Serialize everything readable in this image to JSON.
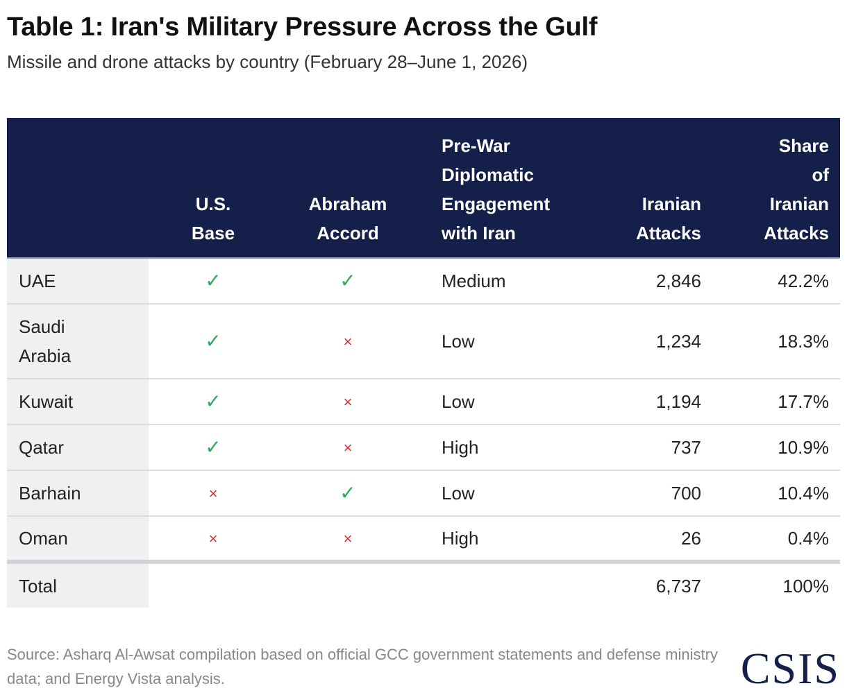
{
  "chart_data": {
    "type": "table",
    "title": "Table 1: Iran's Military Pressure Across the Gulf",
    "subtitle": "Missile and drone attacks by country (February 28–June 1, 2026)",
    "columns": [
      {
        "key": "country",
        "lines": [
          ""
        ]
      },
      {
        "key": "us_base",
        "lines": [
          "U.S.",
          "Base"
        ]
      },
      {
        "key": "abraham_accord",
        "lines": [
          "Abraham",
          "Accord"
        ]
      },
      {
        "key": "engagement",
        "lines": [
          "Pre-War",
          "Diplomatic",
          "Engagement",
          "with Iran"
        ]
      },
      {
        "key": "attacks",
        "lines": [
          "Iranian",
          "Attacks"
        ]
      },
      {
        "key": "share",
        "lines": [
          "Share",
          "of",
          "Iranian",
          "Attacks"
        ]
      }
    ],
    "rows": [
      {
        "country": [
          "UAE"
        ],
        "us_base": true,
        "abraham_accord": true,
        "engagement": "Medium",
        "attacks": "2,846",
        "share": "42.2%"
      },
      {
        "country": [
          "Saudi",
          "Arabia"
        ],
        "us_base": true,
        "abraham_accord": false,
        "engagement": "Low",
        "attacks": "1,234",
        "share": "18.3%"
      },
      {
        "country": [
          "Kuwait"
        ],
        "us_base": true,
        "abraham_accord": false,
        "engagement": "Low",
        "attacks": "1,194",
        "share": "17.7%"
      },
      {
        "country": [
          "Qatar"
        ],
        "us_base": true,
        "abraham_accord": false,
        "engagement": "High",
        "attacks": "737",
        "share": "10.9%"
      },
      {
        "country": [
          "Barhain"
        ],
        "us_base": false,
        "abraham_accord": true,
        "engagement": "Low",
        "attacks": "700",
        "share": "10.4%"
      },
      {
        "country": [
          "Oman"
        ],
        "us_base": false,
        "abraham_accord": false,
        "engagement": "High",
        "attacks": "26",
        "share": "0.4%"
      }
    ],
    "total": {
      "label": "Total",
      "attacks": "6,737",
      "share": "100%"
    },
    "symbols": {
      "yes": "✓",
      "no": "×"
    },
    "colors": {
      "header_bg": "#14204a",
      "yes": "#2eaa55",
      "no": "#d22f2f",
      "country_bg": "#eff0f2"
    }
  },
  "footer": {
    "source": "Source: Asharq Al-Awsat compilation based on official GCC government statements and defense ministry data; and Energy Vista analysis.",
    "logo": "CSIS"
  }
}
